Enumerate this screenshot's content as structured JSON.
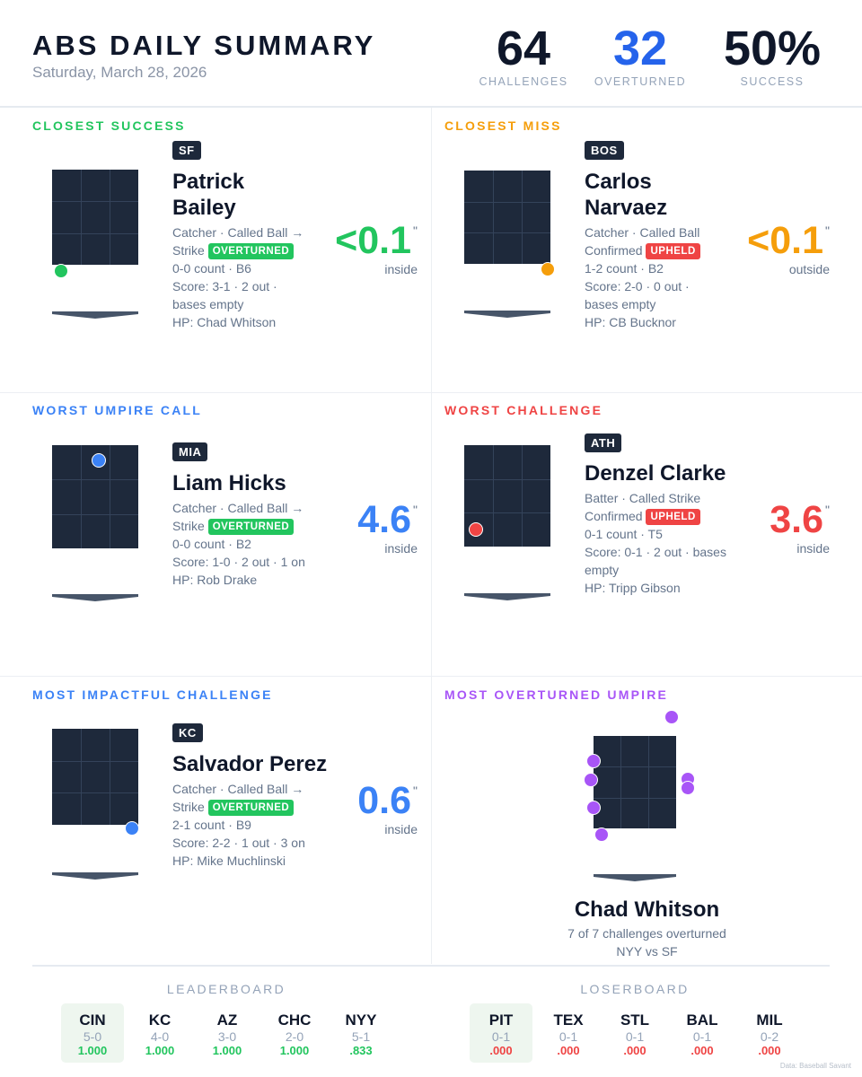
{
  "header": {
    "title": "ABS DAILY SUMMARY",
    "date": "Saturday, March 28, 2026",
    "stats": [
      {
        "value": "64",
        "label": "CHALLENGES",
        "color": "#0f172a"
      },
      {
        "value": "32",
        "label": "OVERTURNED",
        "color": "#2563eb"
      },
      {
        "value": "50%",
        "label": "SUCCESS",
        "color": "#0f172a"
      }
    ]
  },
  "panels": {
    "closest_success": {
      "title": "CLOSEST SUCCESS",
      "color": "#22c55e",
      "team": "SF",
      "player": "Patrick Bailey",
      "player_line1": "Patrick",
      "player_line2": "Bailey",
      "line1": "Catcher · Called Ball →",
      "line2_prefix": "Strike",
      "tag": "OVERTURNED",
      "line3": "0-0 count · B6",
      "line4": "Score: 3-1 · 2 out ·",
      "line5": "bases empty",
      "line6": "HP: Chad Whitson",
      "value": "<0.1",
      "unit": "\"",
      "direction": "inside",
      "value_color": "#22c55e"
    },
    "closest_miss": {
      "title": "CLOSEST MISS",
      "color": "#f59e0b",
      "team": "BOS",
      "player_line1": "Carlos",
      "player_line2": "Narvaez",
      "line1": "Catcher · Called Ball",
      "line2_prefix": "Confirmed",
      "tag": "UPHELD",
      "line3": "1-2 count · B2",
      "line4": "Score: 2-0 · 0 out ·",
      "line5": "bases empty",
      "line6": "HP: CB Bucknor",
      "value": "<0.1",
      "unit": "\"",
      "direction": "outside",
      "value_color": "#f59e0b"
    },
    "worst_umpire_call": {
      "title": "WORST UMPIRE CALL",
      "color": "#3b82f6",
      "team": "MIA",
      "player": "Liam Hicks",
      "line1": "Catcher · Called Ball →",
      "line2_prefix": "Strike",
      "tag": "OVERTURNED",
      "line3": "0-0 count · B2",
      "line4": "Score: 1-0 · 2 out · 1 on",
      "line6": "HP: Rob Drake",
      "value": "4.6",
      "unit": "\"",
      "direction": "inside",
      "value_color": "#3b82f6"
    },
    "worst_challenge": {
      "title": "WORST CHALLENGE",
      "color": "#ef4444",
      "team": "ATH",
      "player": "Denzel Clarke",
      "line1": "Batter · Called Strike",
      "line2_prefix": "Confirmed",
      "tag": "UPHELD",
      "line3": "0-1 count · T5",
      "line4": "Score: 0-1 · 2 out · bases",
      "line5": "empty",
      "line6": "HP: Tripp Gibson",
      "value": "3.6",
      "unit": "\"",
      "direction": "inside",
      "value_color": "#ef4444"
    },
    "most_impactful": {
      "title": "MOST IMPACTFUL CHALLENGE",
      "color": "#3b82f6",
      "team": "KC",
      "player": "Salvador Perez",
      "line1": "Catcher · Called Ball →",
      "line2_prefix": "Strike",
      "tag": "OVERTURNED",
      "line3": "2-1 count · B9",
      "line4": "Score: 2-2 · 1 out · 3 on",
      "line6": "HP: Mike Muchlinski",
      "value": "0.6",
      "unit": "\"",
      "direction": "inside",
      "value_color": "#3b82f6"
    },
    "most_overturned_umpire": {
      "title": "MOST OVERTURNED UMPIRE",
      "color": "#a855f7",
      "name": "Chad Whitson",
      "sub1": "7 of 7 challenges overturned",
      "sub2": "NYY vs SF"
    }
  },
  "leaderboard": {
    "title": "LEADERBOARD",
    "teams": [
      {
        "abbr": "CIN",
        "record": "5-0",
        "pct": "1.000"
      },
      {
        "abbr": "KC",
        "record": "4-0",
        "pct": "1.000"
      },
      {
        "abbr": "AZ",
        "record": "3-0",
        "pct": "1.000"
      },
      {
        "abbr": "CHC",
        "record": "2-0",
        "pct": "1.000"
      },
      {
        "abbr": "NYY",
        "record": "5-1",
        "pct": ".833"
      }
    ],
    "pct_color": "#22c55e"
  },
  "loserboard": {
    "title": "LOSERBOARD",
    "teams": [
      {
        "abbr": "PIT",
        "record": "0-1",
        "pct": ".000"
      },
      {
        "abbr": "TEX",
        "record": "0-1",
        "pct": ".000"
      },
      {
        "abbr": "STL",
        "record": "0-1",
        "pct": ".000"
      },
      {
        "abbr": "BAL",
        "record": "0-1",
        "pct": ".000"
      },
      {
        "abbr": "MIL",
        "record": "0-2",
        "pct": ".000"
      }
    ],
    "pct_color": "#ef4444"
  },
  "source": "Data: Baseball Savant"
}
